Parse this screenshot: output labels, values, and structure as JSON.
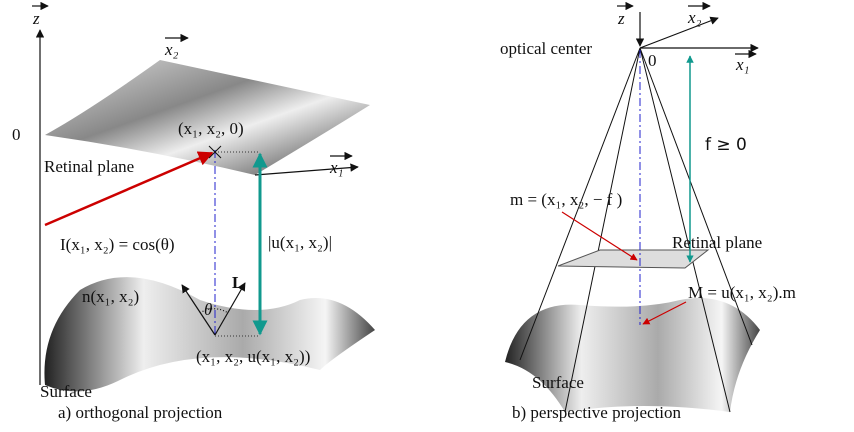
{
  "panels": [
    {
      "axis_z": "z",
      "axis_x2": "x₂",
      "origin": "0",
      "point_plane": "(x₁, x₂, 0)",
      "plane_label": "Retinal plane",
      "axis_x1": "x₁",
      "intensity": "I(x₁, x₂) = cos(θ)",
      "depth": "|u(x₁, x₂)|",
      "light": "L",
      "normal": "n(x₁, x₂)",
      "angle": "θ",
      "surface_label": "Surface",
      "point_surface": "(x₁, x₂, u(x₁, x₂))",
      "caption": "a) orthogonal projection"
    },
    {
      "axis_z": "z",
      "axis_x2": "x₂",
      "center_label": "optical center",
      "origin": "0",
      "axis_x1": "x₁",
      "focal": "f ≥ 0",
      "point_plane": "m = (x₁, x₂, − f )",
      "plane_label": "Retinal plane",
      "point_surface": "M = u(x₁, x₂).m",
      "surface_label": "Surface",
      "caption": "b) perspective projection"
    }
  ]
}
